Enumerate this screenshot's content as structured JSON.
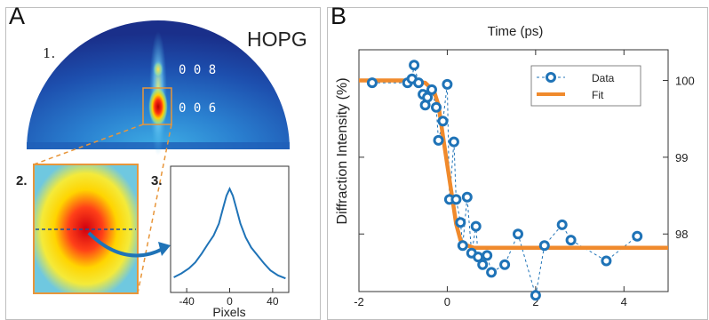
{
  "panel_a": {
    "letter": "A",
    "sample_label": "HOPG",
    "step1": "1.",
    "step2": "2.",
    "step3": "3.",
    "peak_upper": "0 0 8",
    "peak_lower": "0 0 6"
  },
  "panel_b": {
    "letter": "B"
  },
  "colors": {
    "data_marker": "#1f73b7",
    "fit_line": "#f08a2c",
    "zoom_box": "#e8963a",
    "profile_line": "#1f73b7"
  },
  "chart_data": [
    {
      "type": "line",
      "xlabel": "Pixels",
      "xticks": [
        -40,
        0,
        40
      ],
      "xlim": [
        -55,
        55
      ],
      "ylim": [
        0,
        1
      ],
      "series": [
        {
          "x": [
            -52,
            -45,
            -38,
            -32,
            -26,
            -20,
            -15,
            -10,
            -6,
            -3,
            0,
            3,
            6,
            10,
            15,
            20,
            26,
            32,
            38,
            45,
            52
          ],
          "y": [
            0.08,
            0.12,
            0.17,
            0.23,
            0.32,
            0.42,
            0.5,
            0.62,
            0.78,
            0.9,
            0.97,
            0.9,
            0.78,
            0.62,
            0.48,
            0.38,
            0.3,
            0.22,
            0.15,
            0.1,
            0.07
          ]
        }
      ]
    },
    {
      "type": "line",
      "title": "Time (ps)",
      "ylabel": "Diffraction Intensity (%)",
      "xlim": [
        -2,
        5
      ],
      "ylim": [
        97.25,
        100.4
      ],
      "xticks": [
        -2,
        0,
        2,
        4
      ],
      "yticks": [
        98,
        99,
        100
      ],
      "legend_position": "top-right",
      "series": [
        {
          "name": "Data",
          "style": "markers-dashed",
          "x": [
            -1.7,
            -0.9,
            -0.8,
            -0.75,
            -0.65,
            -0.55,
            -0.5,
            -0.45,
            -0.35,
            -0.25,
            -0.2,
            -0.1,
            0.0,
            0.05,
            0.15,
            0.2,
            0.3,
            0.35,
            0.45,
            0.55,
            0.65,
            0.7,
            0.8,
            0.9,
            1.0,
            1.3,
            1.6,
            2.0,
            2.2,
            2.6,
            2.8,
            3.6,
            4.3
          ],
          "y": [
            99.97,
            99.97,
            100.02,
            100.2,
            99.97,
            99.82,
            99.68,
            99.78,
            99.88,
            99.65,
            99.22,
            99.47,
            99.95,
            98.45,
            99.2,
            98.45,
            98.15,
            97.85,
            98.48,
            97.75,
            98.1,
            97.7,
            97.6,
            97.72,
            97.5,
            97.6,
            98.0,
            97.2,
            97.85,
            98.12,
            97.92,
            97.65,
            97.97
          ]
        },
        {
          "name": "Fit",
          "style": "solid",
          "x": [
            -2,
            -1,
            -0.5,
            -0.3,
            -0.2,
            -0.1,
            0,
            0.1,
            0.2,
            0.3,
            0.4,
            0.6,
            1.0,
            2,
            3,
            4,
            5
          ],
          "y": [
            100,
            100,
            99.97,
            99.86,
            99.68,
            99.28,
            98.9,
            98.52,
            98.13,
            97.92,
            97.86,
            97.82,
            97.82,
            97.82,
            97.82,
            97.82,
            97.82
          ]
        }
      ]
    }
  ]
}
